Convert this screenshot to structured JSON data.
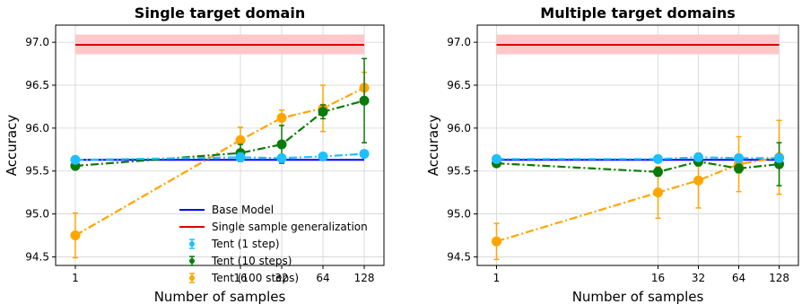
{
  "chart_data": [
    {
      "type": "line",
      "title": "Single target domain",
      "xlabel": "Number of samples",
      "ylabel": "Accuracy",
      "x": [
        1,
        16,
        32,
        64,
        128
      ],
      "x_scale": "log2",
      "xticks": [
        "1",
        "16",
        "32",
        "64",
        "128"
      ],
      "yticks": [
        "94.5",
        "95.0",
        "95.5",
        "96.0",
        "96.5",
        "97.0"
      ],
      "ylim": [
        94.4,
        97.2
      ],
      "grid": true,
      "legend": "lower-right",
      "hlines": [
        {
          "name": "Base Model",
          "value": 95.63,
          "color": "#0000ff"
        },
        {
          "name": "Single sample generalization",
          "value": 96.97,
          "band": [
            96.86,
            97.09
          ],
          "color": "#dd0000",
          "band_color": "#ffc8c8"
        }
      ],
      "series": [
        {
          "name": "Tent (1 step)",
          "color": "#1ec0ff",
          "values": [
            95.63,
            95.66,
            95.65,
            95.67,
            95.7
          ],
          "errors": [
            0.02,
            0.05,
            0.02,
            0.02,
            0.03
          ]
        },
        {
          "name": "Tent (10 steps)",
          "color": "#0a7a0a",
          "values": [
            95.56,
            95.71,
            95.81,
            96.19,
            96.32
          ],
          "errors": [
            0.04,
            0.1,
            0.22,
            0.08,
            0.49
          ]
        },
        {
          "name": "Tent (100 steps)",
          "color": "#ffa500",
          "values": [
            94.75,
            95.86,
            96.12,
            96.23,
            96.47
          ],
          "errors": [
            0.26,
            0.15,
            0.09,
            0.27,
            0.18
          ]
        }
      ]
    },
    {
      "type": "line",
      "title": "Multiple target domains",
      "xlabel": "Number of samples",
      "ylabel": "Accuracy",
      "x": [
        1,
        16,
        32,
        64,
        128
      ],
      "x_scale": "log2",
      "xticks": [
        "1",
        "16",
        "32",
        "64",
        "128"
      ],
      "yticks": [
        "94.5",
        "95.0",
        "95.5",
        "96.0",
        "96.5",
        "97.0"
      ],
      "ylim": [
        94.4,
        97.2
      ],
      "grid": true,
      "hlines": [
        {
          "name": "Base Model",
          "value": 95.63,
          "color": "#0000ff"
        },
        {
          "name": "Single sample generalization",
          "value": 96.97,
          "band": [
            96.86,
            97.09
          ],
          "color": "#dd0000",
          "band_color": "#ffc8c8"
        }
      ],
      "series": [
        {
          "name": "Tent (1 step)",
          "color": "#1ec0ff",
          "values": [
            95.64,
            95.64,
            95.66,
            95.65,
            95.65
          ],
          "errors": [
            0.02,
            0.02,
            0.02,
            0.02,
            0.02
          ]
        },
        {
          "name": "Tent (10 steps)",
          "color": "#0a7a0a",
          "values": [
            95.59,
            95.49,
            95.61,
            95.53,
            95.58
          ],
          "errors": [
            0.03,
            0.05,
            0.05,
            0.05,
            0.25
          ]
        },
        {
          "name": "Tent (100 steps)",
          "color": "#ffa500",
          "values": [
            94.68,
            95.25,
            95.39,
            95.58,
            95.66
          ],
          "errors": [
            0.21,
            0.3,
            0.32,
            0.32,
            0.43
          ]
        }
      ]
    }
  ]
}
